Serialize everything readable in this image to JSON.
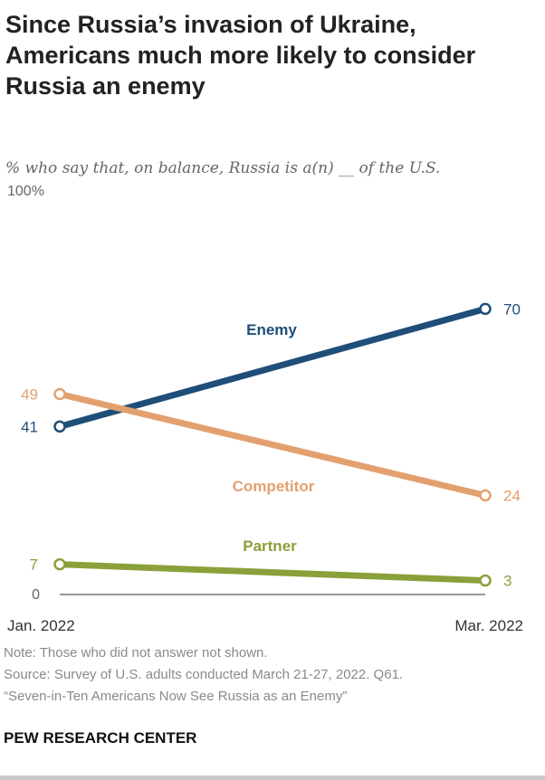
{
  "title": "Since Russia’s invasion of Ukraine, Americans much more likely to consider Russia an enemy",
  "subtitle": "% who say that, on balance, Russia is a(n) __ of the U.S.",
  "chart_data": {
    "type": "line",
    "x": [
      "Jan. 2022",
      "Mar. 2022"
    ],
    "ylim": [
      0,
      100
    ],
    "y_tick_labels": [
      "100%",
      "0"
    ],
    "series": [
      {
        "name": "Enemy",
        "values": [
          41,
          70
        ],
        "color": "#1f4e79"
      },
      {
        "name": "Competitor",
        "values": [
          49,
          24
        ],
        "color": "#e3a06f"
      },
      {
        "name": "Partner",
        "values": [
          7,
          3
        ],
        "color": "#8aa03a"
      }
    ],
    "grid": false,
    "legend": "inline labels"
  },
  "notes": {
    "note": "Note: Those who did not answer not shown.",
    "source": "Source: Survey of U.S. adults conducted March 21-27, 2022. Q61.",
    "report": "“Seven-in-Ten Americans Now See Russia as an Enemy”"
  },
  "brand": "PEW RESEARCH CENTER"
}
